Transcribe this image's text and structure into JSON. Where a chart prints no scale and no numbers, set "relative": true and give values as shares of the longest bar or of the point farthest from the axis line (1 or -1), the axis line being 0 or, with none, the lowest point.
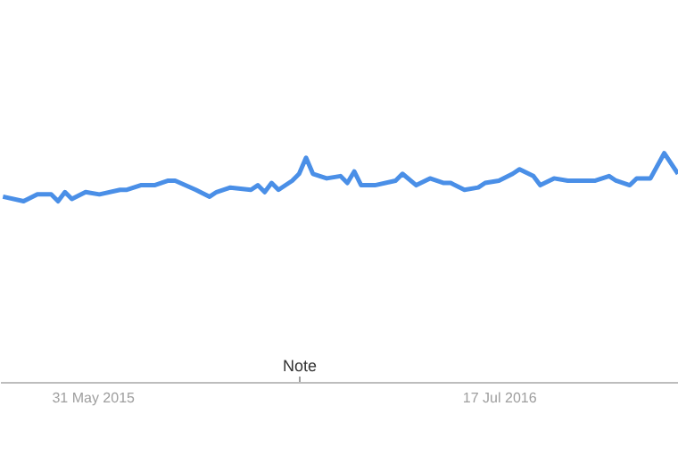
{
  "chart_data": {
    "type": "line",
    "relative": true,
    "xlim": [
      "2015-02-26",
      "2017-01-15"
    ],
    "xticks": [
      {
        "value": "2015-05-31",
        "label": "31 May 2015"
      },
      {
        "value": "2016-07-17",
        "label": "17 Jul 2016"
      }
    ],
    "annotations": [
      "Note"
    ],
    "series": [
      {
        "color": "#4a8fe7",
        "x": [
          "2015-03-01",
          "2015-03-22",
          "2015-04-05",
          "2015-04-19",
          "2015-04-26",
          "2015-05-03",
          "2015-05-10",
          "2015-05-24",
          "2015-06-07",
          "2015-06-28",
          "2015-07-05",
          "2015-07-19",
          "2015-08-02",
          "2015-08-16",
          "2015-08-23",
          "2015-09-13",
          "2015-09-27",
          "2015-10-04",
          "2015-10-18",
          "2015-11-08",
          "2015-11-15",
          "2015-11-22",
          "2015-11-29",
          "2015-12-06",
          "2015-12-20",
          "2015-12-27",
          "2016-01-03",
          "2016-01-10",
          "2016-01-24",
          "2016-02-07",
          "2016-02-14",
          "2016-02-21",
          "2016-02-28",
          "2016-03-13",
          "2016-04-03",
          "2016-04-10",
          "2016-04-24",
          "2016-05-08",
          "2016-05-22",
          "2016-05-29",
          "2016-06-12",
          "2016-06-26",
          "2016-07-03",
          "2016-07-17",
          "2016-07-31",
          "2016-08-07",
          "2016-08-21",
          "2016-08-28",
          "2016-09-11",
          "2016-09-25",
          "2016-10-09",
          "2016-10-23",
          "2016-11-06",
          "2016-11-13",
          "2016-11-27",
          "2016-12-04",
          "2016-12-11",
          "2016-12-18",
          "2017-01-01",
          "2017-01-15"
        ],
        "values": [
          0.81,
          0.79,
          0.82,
          0.82,
          0.79,
          0.83,
          0.8,
          0.83,
          0.82,
          0.84,
          0.84,
          0.86,
          0.86,
          0.88,
          0.88,
          0.84,
          0.81,
          0.83,
          0.85,
          0.84,
          0.86,
          0.83,
          0.87,
          0.84,
          0.88,
          0.91,
          0.98,
          0.91,
          0.89,
          0.9,
          0.87,
          0.92,
          0.86,
          0.86,
          0.88,
          0.91,
          0.86,
          0.89,
          0.87,
          0.87,
          0.84,
          0.85,
          0.87,
          0.88,
          0.91,
          0.93,
          0.9,
          0.86,
          0.89,
          0.88,
          0.88,
          0.88,
          0.9,
          0.88,
          0.86,
          0.89,
          0.89,
          0.89,
          1.0,
          0.91
        ]
      }
    ]
  }
}
